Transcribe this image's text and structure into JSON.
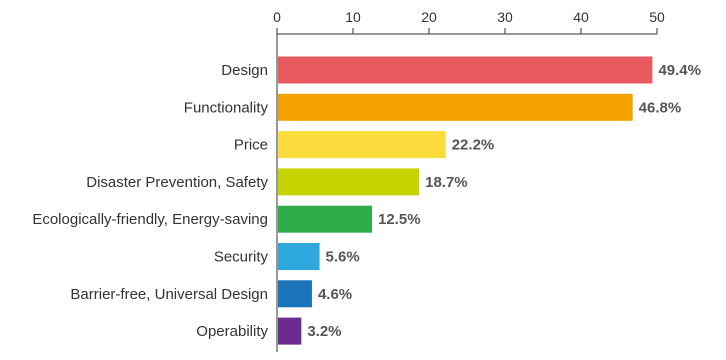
{
  "chart_data": {
    "type": "bar",
    "orientation": "horizontal",
    "categories": [
      "Design",
      "Functionality",
      "Price",
      "Disaster Prevention, Safety",
      "Ecologically-friendly, Energy-saving",
      "Security",
      "Barrier-free, Universal Design",
      "Operability"
    ],
    "values": [
      49.4,
      46.8,
      22.2,
      18.7,
      12.5,
      5.6,
      4.6,
      3.2
    ],
    "value_labels": [
      "49.4%",
      "46.8%",
      "22.2%",
      "18.7%",
      "12.5%",
      "5.6%",
      "4.6%",
      "3.2%"
    ],
    "colors": [
      "#e85a5f",
      "#f5a200",
      "#fbdc3c",
      "#c7d400",
      "#2eae4a",
      "#2fa8e0",
      "#1b73b9",
      "#6a2c8e"
    ],
    "xaxis": {
      "position": "top",
      "ticks": [
        0,
        10,
        20,
        30,
        40,
        50
      ],
      "tick_labels": [
        "0",
        "10",
        "20",
        "30",
        "40",
        "50"
      ],
      "xlim": [
        0,
        50
      ]
    },
    "title": "",
    "xlabel": "",
    "ylabel": "",
    "grid": false,
    "legend": "none"
  }
}
